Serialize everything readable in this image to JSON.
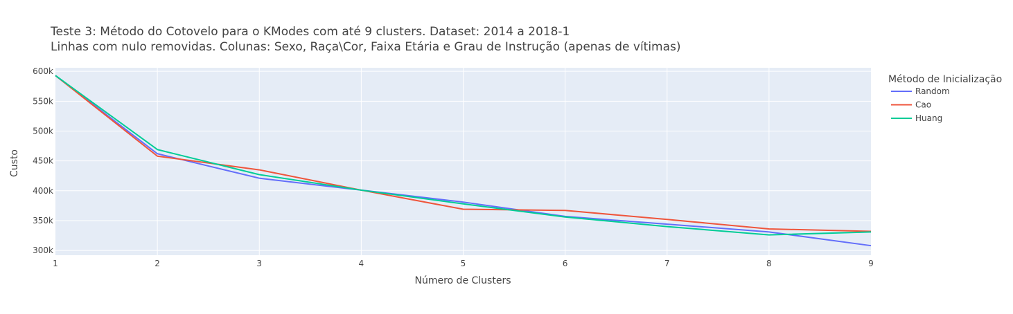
{
  "chart_data": {
    "type": "line",
    "title_lines": [
      "Teste 3: Método do Cotovelo para o KModes com até 9 clusters. Dataset: 2014 a 2018-1",
      "Linhas com nulo removidas. Colunas: Sexo, Raça\\Cor, Faixa Etária e Grau de Instrução (apenas de vítimas)"
    ],
    "xlabel": "Número de Clusters",
    "ylabel": "Custo",
    "x": [
      1,
      2,
      3,
      4,
      5,
      6,
      7,
      8,
      9
    ],
    "x_ticks": [
      1,
      2,
      3,
      4,
      5,
      6,
      7,
      8,
      9
    ],
    "x_tick_labels": [
      "1",
      "2",
      "3",
      "4",
      "5",
      "6",
      "7",
      "8",
      "9"
    ],
    "xlim": [
      1,
      9
    ],
    "y_ticks": [
      300000,
      350000,
      400000,
      450000,
      500000,
      550000,
      600000
    ],
    "y_tick_labels": [
      "300k",
      "350k",
      "400k",
      "450k",
      "500k",
      "550k",
      "600k"
    ],
    "ylim": [
      292000,
      606000
    ],
    "grid": true,
    "legend_title": "Método de Inicialização",
    "legend_position": "right",
    "plot_bg": "#e5ecf6",
    "series": [
      {
        "name": "Random",
        "color": "#636efa",
        "values": [
          593000,
          462000,
          421000,
          401000,
          381000,
          357000,
          344000,
          331000,
          308000
        ]
      },
      {
        "name": "Cao",
        "color": "#ef553b",
        "values": [
          593000,
          458000,
          435000,
          401000,
          369000,
          367000,
          352000,
          336000,
          332000
        ]
      },
      {
        "name": "Huang",
        "color": "#00cc96",
        "values": [
          593000,
          469000,
          427000,
          401000,
          378000,
          356000,
          340000,
          326000,
          331000
        ]
      }
    ]
  }
}
